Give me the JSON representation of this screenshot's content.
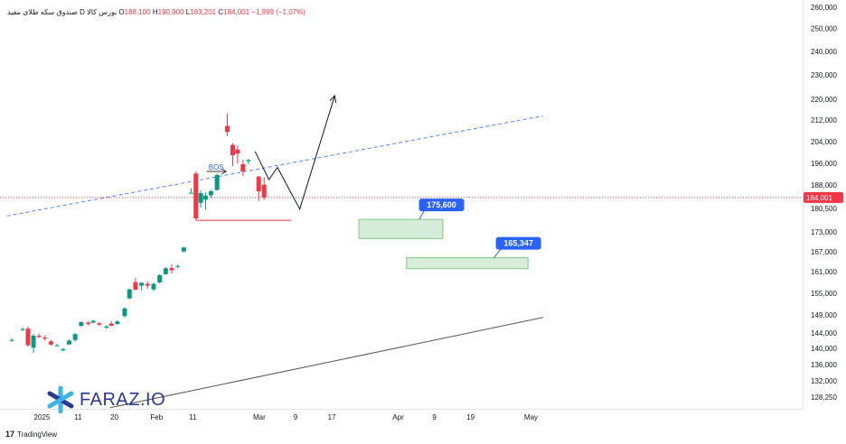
{
  "header": {
    "symbol_label": "صندوق سکه طلای مفید",
    "interval": "D",
    "exchange": "بورس کالا",
    "open_label": "O",
    "open": "188,100",
    "high_label": "H",
    "high": "190,900",
    "low_label": "L",
    "low": "183,201",
    "close_label": "C",
    "close": "184,001",
    "change": "−1,999 (−1.07%)"
  },
  "branding": {
    "tradingview": "TradingView",
    "watermark": "FARAZ.IO"
  },
  "colors": {
    "up": "#089981",
    "down": "#f23645",
    "zone_fill": "#c8e6c9",
    "label_blue": "#2962ff",
    "trend_blue": "#2962ff"
  },
  "chart_data": {
    "type": "candlestick",
    "price_axis": {
      "ticks": [
        260000,
        250000,
        240000,
        230000,
        220000,
        212000,
        204000,
        196000,
        188000,
        180500,
        173000,
        167000,
        161000,
        155000,
        149000,
        144000,
        140000,
        136000,
        132000,
        128250
      ],
      "tick_labels": [
        "260,000",
        "250,000",
        "240,000",
        "230,000",
        "220,000",
        "212,000",
        "204,000",
        "196,000",
        "188,000",
        "180,500",
        "173,000",
        "167,000",
        "161,000",
        "155,000",
        "149,000",
        "144,000",
        "140,000",
        "136,000",
        "132,000",
        "128,250"
      ],
      "last_price": 184001,
      "last_price_label": "184,001",
      "scale": "log"
    },
    "time_axis": {
      "labels": [
        {
          "label": "2025",
          "t": 5
        },
        {
          "label": "11",
          "t": 11
        },
        {
          "label": "20",
          "t": 17
        },
        {
          "label": "Feb",
          "t": 24
        },
        {
          "label": "11",
          "t": 30
        },
        {
          "label": "Mar",
          "t": 41
        },
        {
          "label": "9",
          "t": 47
        },
        {
          "label": "17",
          "t": 53
        },
        {
          "label": "Apr",
          "t": 64
        },
        {
          "label": "9",
          "t": 70
        },
        {
          "label": "19",
          "t": 76
        },
        {
          "label": "May",
          "t": 86
        }
      ]
    },
    "candles": [
      {
        "t": 0,
        "o": 142200,
        "h": 142700,
        "l": 141700,
        "c": 142200
      },
      {
        "t": 1.8,
        "o": 145000,
        "h": 145500,
        "l": 144500,
        "c": 145100
      },
      {
        "t": 2.7,
        "o": 145200,
        "h": 145800,
        "l": 140400,
        "c": 140800
      },
      {
        "t": 3.6,
        "o": 140200,
        "h": 143800,
        "l": 138900,
        "c": 143300
      },
      {
        "t": 4.5,
        "o": 143300,
        "h": 143800,
        "l": 142600,
        "c": 143000
      },
      {
        "t": 5.5,
        "o": 142800,
        "h": 143400,
        "l": 142000,
        "c": 142500
      },
      {
        "t": 6.5,
        "o": 141800,
        "h": 142200,
        "l": 140700,
        "c": 141000
      },
      {
        "t": 7.5,
        "o": 140800,
        "h": 141200,
        "l": 140500,
        "c": 140800
      },
      {
        "t": 8.5,
        "o": 139500,
        "h": 140100,
        "l": 139300,
        "c": 139800
      },
      {
        "t": 9.5,
        "o": 141000,
        "h": 142300,
        "l": 141000,
        "c": 142000
      },
      {
        "t": 10.5,
        "o": 142200,
        "h": 144000,
        "l": 141800,
        "c": 143700
      },
      {
        "t": 11.5,
        "o": 146000,
        "h": 147200,
        "l": 145800,
        "c": 147000
      },
      {
        "t": 12.7,
        "o": 146900,
        "h": 147300,
        "l": 146000,
        "c": 146500
      },
      {
        "t": 13.5,
        "o": 146900,
        "h": 147600,
        "l": 146600,
        "c": 147400
      },
      {
        "t": 14.5,
        "o": 146700,
        "h": 147000,
        "l": 145900,
        "c": 146300
      },
      {
        "t": 15.7,
        "o": 145500,
        "h": 146200,
        "l": 145100,
        "c": 145800
      },
      {
        "t": 16.5,
        "o": 146600,
        "h": 147300,
        "l": 145900,
        "c": 146000
      },
      {
        "t": 17.5,
        "o": 146500,
        "h": 147600,
        "l": 146300,
        "c": 147200
      },
      {
        "t": 18.7,
        "o": 148700,
        "h": 151200,
        "l": 148200,
        "c": 150800
      },
      {
        "t": 19.5,
        "o": 153600,
        "h": 156300,
        "l": 153300,
        "c": 156100
      },
      {
        "t": 20.5,
        "o": 158100,
        "h": 159300,
        "l": 155900,
        "c": 156000
      },
      {
        "t": 21.5,
        "o": 157100,
        "h": 158100,
        "l": 155800,
        "c": 157900
      },
      {
        "t": 22.5,
        "o": 157600,
        "h": 158300,
        "l": 156300,
        "c": 157100
      },
      {
        "t": 23.5,
        "o": 156100,
        "h": 157900,
        "l": 155600,
        "c": 157600
      },
      {
        "t": 24.5,
        "o": 158000,
        "h": 160300,
        "l": 157700,
        "c": 160000
      },
      {
        "t": 25.5,
        "o": 160300,
        "h": 162300,
        "l": 160100,
        "c": 162000
      },
      {
        "t": 26.5,
        "o": 162100,
        "h": 163200,
        "l": 160500,
        "c": 161400
      },
      {
        "t": 27.5,
        "o": 162600,
        "h": 163100,
        "l": 162000,
        "c": 162700
      },
      {
        "t": 28.5,
        "o": 167100,
        "h": 168500,
        "l": 166800,
        "c": 168300
      },
      {
        "t": 29.7,
        "o": 185400,
        "h": 187000,
        "l": 185300,
        "c": 185500
      },
      {
        "t": 30.5,
        "o": 192200,
        "h": 193000,
        "l": 176700,
        "c": 177300
      },
      {
        "t": 31.3,
        "o": 182300,
        "h": 186200,
        "l": 180800,
        "c": 185400
      },
      {
        "t": 32.1,
        "o": 183300,
        "h": 185600,
        "l": 180100,
        "c": 184600
      },
      {
        "t": 33,
        "o": 184700,
        "h": 186500,
        "l": 183800,
        "c": 186000
      },
      {
        "t": 34,
        "o": 186400,
        "h": 192200,
        "l": 186200,
        "c": 191700
      },
      {
        "t": 35.7,
        "o": 209800,
        "h": 214600,
        "l": 206100,
        "c": 207600
      },
      {
        "t": 36.6,
        "o": 202800,
        "h": 203500,
        "l": 195000,
        "c": 199000
      },
      {
        "t": 37.4,
        "o": 201100,
        "h": 202500,
        "l": 196000,
        "c": 199600
      },
      {
        "t": 38.3,
        "o": 195700,
        "h": 197300,
        "l": 191300,
        "c": 193000
      },
      {
        "t": 39.2,
        "o": 196800,
        "h": 197700,
        "l": 195800,
        "c": 197200
      },
      {
        "t": 40.9,
        "o": 191100,
        "h": 191300,
        "l": 182900,
        "c": 186000
      },
      {
        "t": 41.8,
        "o": 188100,
        "h": 190900,
        "l": 183201,
        "c": 184001
      }
    ],
    "annotations": {
      "bos_label": "BOS",
      "bos_arrow": {
        "t1": 32.3,
        "t2": 35.5,
        "price": 193000
      },
      "support_line": {
        "t1": 30.5,
        "t2": 46.3,
        "price": 176700
      },
      "projection_path": [
        [
          40.3,
          200400
        ],
        [
          42.6,
          190000
        ],
        [
          44,
          194500
        ],
        [
          47.7,
          180300
        ],
        [
          53.5,
          221500
        ]
      ],
      "dashed_trendline": {
        "t1": -0.8,
        "p1": 178100,
        "t2": 88,
        "p2": 213600
      },
      "lower_trendline": {
        "t1": 16.3,
        "p1": 125800,
        "t2": 88,
        "p2": 148300
      },
      "zones": [
        {
          "t1": 57.5,
          "t2": 71.4,
          "top": 177000,
          "bottom": 171000,
          "label": "175,600"
        },
        {
          "t1": 65.4,
          "t2": 85.5,
          "top": 165200,
          "bottom": 161900,
          "label": "165,347"
        }
      ]
    }
  }
}
